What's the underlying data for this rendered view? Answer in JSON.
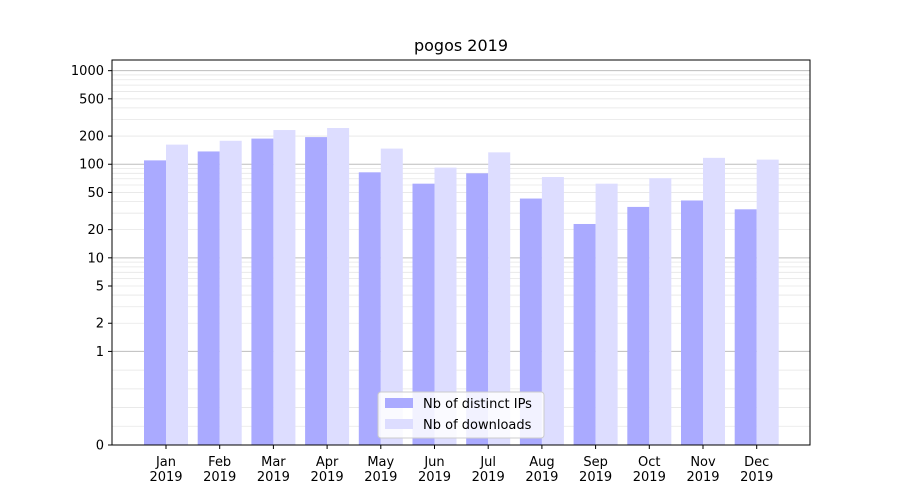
{
  "chart_data": {
    "type": "bar",
    "title": "pogos 2019",
    "xlabel": "",
    "ylabel": "",
    "y_scale": "symlog",
    "ylim": [
      0,
      1300
    ],
    "y_ticks": [
      0,
      1,
      2,
      5,
      10,
      20,
      50,
      100,
      200,
      500,
      1000
    ],
    "categories": [
      "Jan\n2019",
      "Feb\n2019",
      "Mar\n2019",
      "Apr\n2019",
      "May\n2019",
      "Jun\n2019",
      "Jul\n2019",
      "Aug\n2019",
      "Sep\n2019",
      "Oct\n2019",
      "Nov\n2019",
      "Dec\n2019"
    ],
    "series": [
      {
        "name": "Nb of distinct IPs",
        "color": "#aaaaff",
        "values": [
          110,
          137,
          188,
          195,
          82,
          62,
          80,
          43,
          23,
          35,
          41,
          33
        ]
      },
      {
        "name": "Nb of downloads",
        "color": "#ddddff",
        "values": [
          162,
          178,
          232,
          244,
          147,
          92,
          134,
          73,
          62,
          71,
          117,
          112
        ]
      }
    ],
    "grid": true,
    "legend_position": "lower-center"
  }
}
